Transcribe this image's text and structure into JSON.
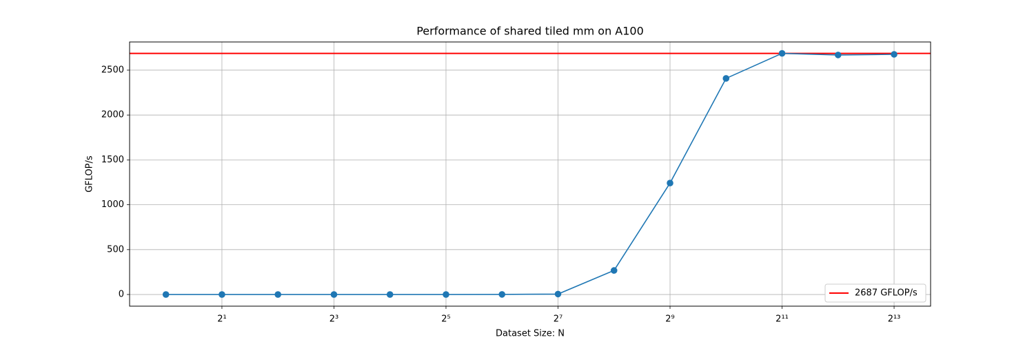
{
  "chart_data": {
    "type": "line",
    "title": "Performance of shared tiled mm on A100",
    "xlabel": "Dataset Size: N",
    "ylabel": "GFLOP/s",
    "x": [
      1,
      2,
      4,
      8,
      16,
      32,
      64,
      128,
      256,
      512,
      1024,
      2048,
      4096,
      8192
    ],
    "values": [
      0,
      0,
      0,
      0,
      0,
      0,
      1,
      5,
      268,
      1242,
      2408,
      2687,
      2669,
      2676
    ],
    "color": "#1f77b4",
    "reference_line": {
      "value": 2687,
      "name": "2687 GFLOP/s",
      "color": "#ff0000"
    },
    "xscale": "log",
    "xlim": [
      0.638,
      12870
    ],
    "ylim": [
      -130,
      2814
    ],
    "xticks": [
      {
        "value": 2,
        "label": "2¹"
      },
      {
        "value": 8,
        "label": "2³"
      },
      {
        "value": 32,
        "label": "2⁵"
      },
      {
        "value": 128,
        "label": "2⁷"
      },
      {
        "value": 512,
        "label": "2⁹"
      },
      {
        "value": 2048,
        "label": "2¹¹"
      },
      {
        "value": 8192,
        "label": "2¹³"
      }
    ],
    "yticks": [
      0,
      500,
      1000,
      1500,
      2000,
      2500
    ],
    "grid": true,
    "legend": "lower right"
  }
}
